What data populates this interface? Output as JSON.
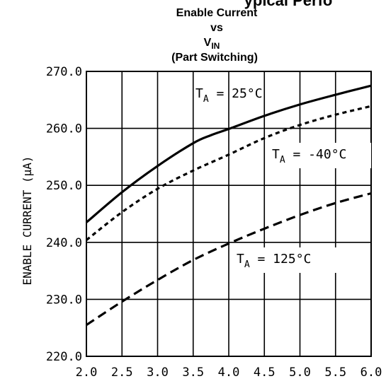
{
  "chart_data": {
    "type": "line",
    "header_partial": "ypical Perfo",
    "title_lines": [
      "Enable Current",
      "vs",
      "V",
      "(Part Switching)"
    ],
    "title_vin_sub": "IN",
    "ylabel": "ENABLE CURRENT (μA)",
    "xlabel": "",
    "xlim": [
      2.0,
      6.0
    ],
    "ylim": [
      220.0,
      270.0
    ],
    "x_ticks": [
      2.0,
      2.5,
      3.0,
      3.5,
      4.0,
      4.5,
      5.0,
      5.5,
      6.0
    ],
    "x_tick_labels": [
      "2.0",
      "2.5",
      "3.0",
      "3.5",
      "4.0",
      "4.5",
      "5.0",
      "5.5",
      "6.0"
    ],
    "y_ticks": [
      220.0,
      230.0,
      240.0,
      250.0,
      260.0,
      270.0
    ],
    "y_tick_labels": [
      "220.0",
      "230.0",
      "240.0",
      "250.0",
      "260.0",
      "270.0"
    ],
    "grid": true,
    "series": [
      {
        "name": "T_A = 25°C",
        "label_main": "T",
        "label_sub": "A",
        "label_rest": " = 25°C",
        "style": "solid",
        "x": [
          2.0,
          2.5,
          3.0,
          3.5,
          3.75,
          4.0,
          4.5,
          5.0,
          5.5,
          6.0
        ],
        "y": [
          243.5,
          248.8,
          253.4,
          257.4,
          258.8,
          259.9,
          262.2,
          264.2,
          265.9,
          267.5
        ]
      },
      {
        "name": "T_A = -40°C",
        "label_main": "T",
        "label_sub": "A",
        "label_rest": " = -40°C",
        "style": "dotted",
        "x": [
          2.0,
          2.5,
          3.0,
          3.5,
          4.0,
          4.5,
          5.0,
          5.5,
          6.0
        ],
        "y": [
          240.4,
          245.3,
          249.4,
          252.6,
          255.4,
          258.3,
          260.6,
          262.4,
          263.9
        ]
      },
      {
        "name": "T_A = 125°C",
        "label_main": "T",
        "label_sub": "A",
        "label_rest": " = 125°C",
        "style": "dashed",
        "x": [
          2.0,
          2.5,
          3.0,
          3.5,
          4.0,
          4.5,
          5.0,
          5.5,
          6.0
        ],
        "y": [
          225.5,
          229.6,
          233.4,
          236.9,
          239.8,
          242.4,
          244.8,
          246.9,
          248.6
        ]
      }
    ]
  }
}
